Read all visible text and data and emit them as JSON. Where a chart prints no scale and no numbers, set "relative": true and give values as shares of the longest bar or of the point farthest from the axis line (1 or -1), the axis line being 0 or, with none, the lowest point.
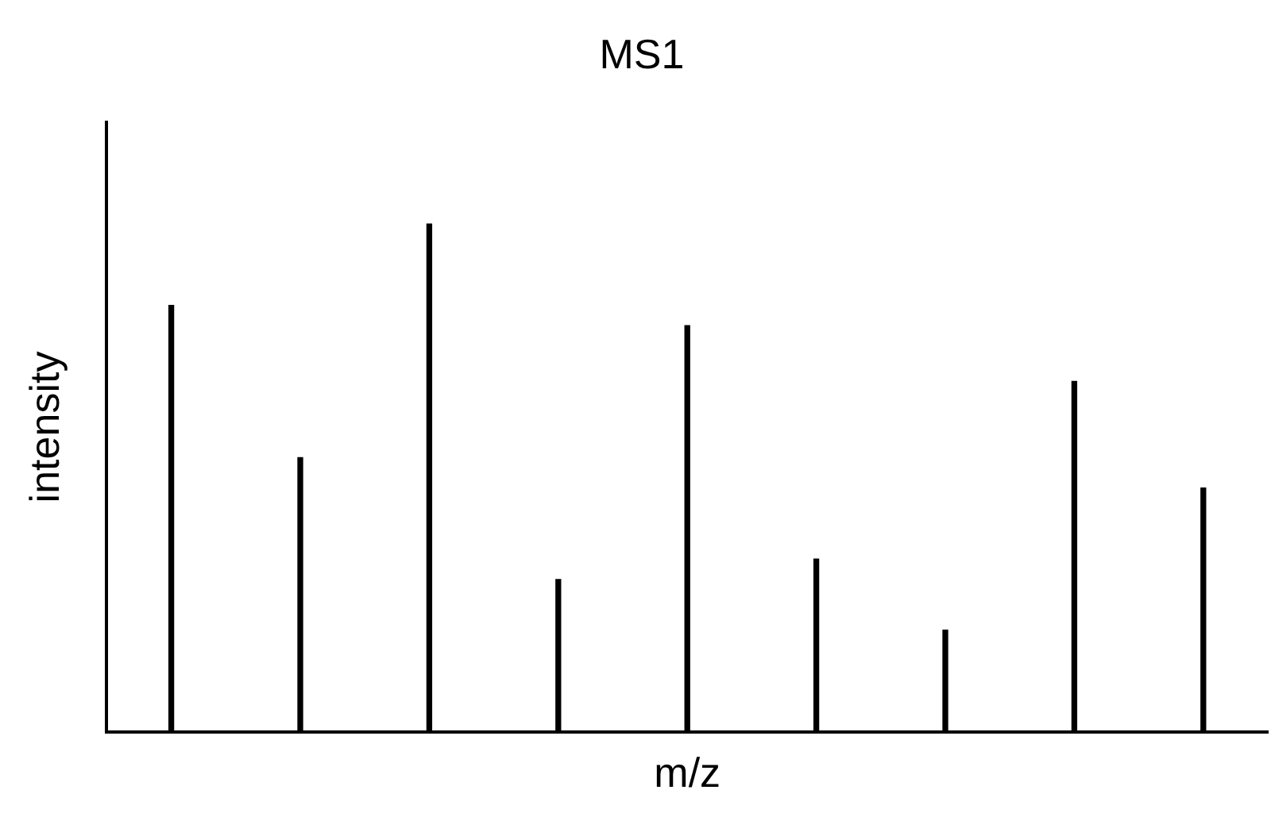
{
  "chart_data": {
    "type": "bar",
    "title": "MS1",
    "xlabel": "m/z",
    "ylabel": "intensity",
    "relative": true,
    "color": "#000000",
    "grid": false,
    "legend": false,
    "categories": [
      null,
      null,
      null,
      null,
      null,
      null,
      null,
      null,
      null
    ],
    "values": [
      0.84,
      0.54,
      1,
      0.3,
      0.8,
      0.34,
      0.2,
      0.69,
      0.48
    ]
  }
}
